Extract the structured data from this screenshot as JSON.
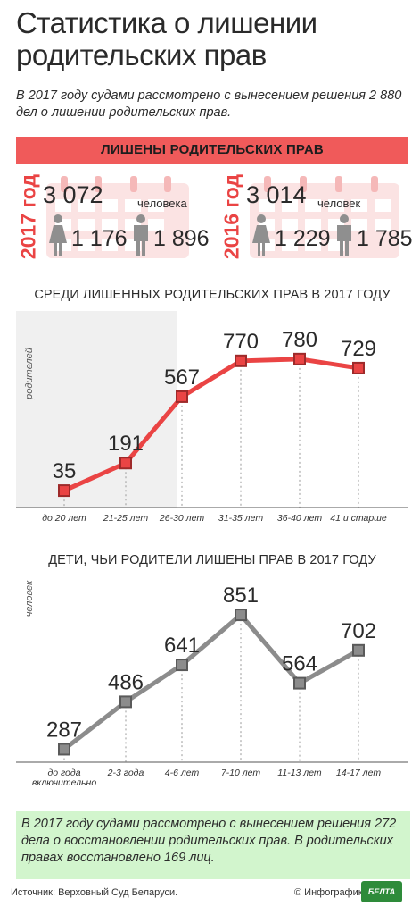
{
  "title": "Статистика о лишении родительских прав",
  "intro": "В 2017 году судами рассмотрено с вынесением решения 2 880 дел о лишении родительских прав.",
  "banner": "ЛИШЕНЫ РОДИТЕЛЬСКИХ ПРАВ",
  "years": [
    {
      "year": "2017 год",
      "total": "3 072",
      "unit": "человека",
      "women": "1 176",
      "men": "1 896"
    },
    {
      "year": "2016 год",
      "total": "3 014",
      "unit": "человек",
      "women": "1 229",
      "men": "1 785"
    }
  ],
  "colors": {
    "accent": "#f05a5a",
    "red_line": "#ea4444",
    "gray_line": "#8c8c8c",
    "note_bg": "#d2f5cd",
    "panel_bg": "#f0f0f0"
  },
  "chart_data": [
    {
      "type": "line",
      "title": "СРЕДИ ЛИШЕННЫХ РОДИТЕЛЬСКИХ ПРАВ В 2017 ГОДУ",
      "ylabel": "родителей",
      "categories": [
        "до 20 лет",
        "21-25 лет",
        "26-30 лет",
        "31-35 лет",
        "36-40 лет",
        "41 и старше"
      ],
      "values": [
        35,
        191,
        567,
        770,
        780,
        729
      ],
      "ylim": [
        0,
        850
      ],
      "grid": false
    },
    {
      "type": "line",
      "title": "ДЕТИ, ЧЬИ РОДИТЕЛИ ЛИШЕНЫ ПРАВ В 2017 ГОДУ",
      "ylabel": "человек",
      "categories": [
        "до года включительно",
        "2-3 года",
        "4-6 лет",
        "7-10 лет",
        "11-13 лет",
        "14-17 лет"
      ],
      "values": [
        287,
        486,
        641,
        851,
        564,
        702
      ],
      "ylim": [
        150,
        900
      ],
      "grid": false
    }
  ],
  "note": "В 2017 году судами рассмотрено с вынесением решения 272 дела о восстановлении родительских прав. В родительских правах восстановлено 169 лиц.",
  "source": "Источник: Верховный Суд Беларуси.",
  "copyright": "© Инфографика",
  "logo_text": "БЕЛТА",
  "icons": [
    "calendar-icon",
    "woman-icon",
    "man-icon"
  ]
}
